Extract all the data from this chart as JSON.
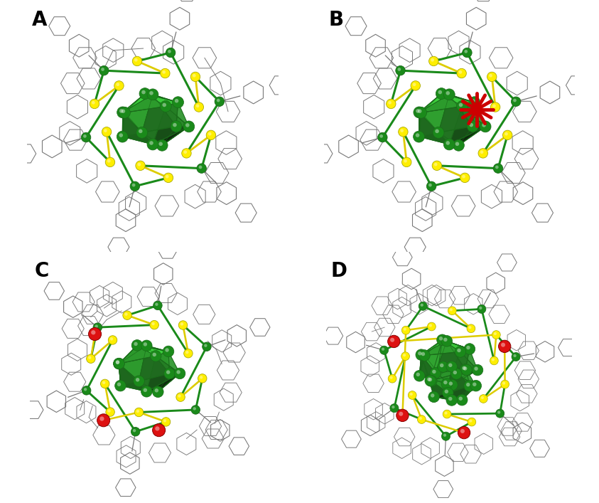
{
  "panels": [
    "A",
    "B",
    "C",
    "D"
  ],
  "background_color": "#ffffff",
  "label_fontsize": 20,
  "label_color": "#000000",
  "au_color": "#1a8a1a",
  "s_color": "#ffee00",
  "o_color": "#dd1111",
  "ligand_color": "#777777",
  "core_dark": "#1a6a1a",
  "core_mid": "#2d8a2d",
  "core_light": "#4aaa4a",
  "star_color": "#cc0000",
  "fig_width": 8.43,
  "fig_height": 7.07,
  "dpi": 100
}
